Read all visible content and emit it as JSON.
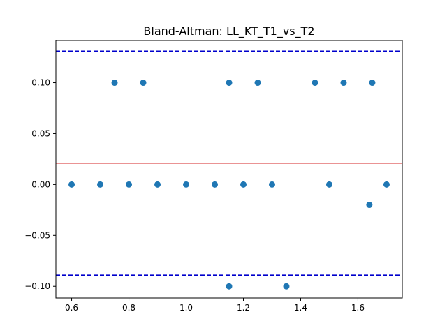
{
  "chart_data": {
    "type": "scatter",
    "title": "Bland-Altman: LL_KT_T1_vs_T2",
    "xlabel": "",
    "ylabel": "",
    "xlim": [
      0.545,
      1.755
    ],
    "ylim": [
      -0.1115,
      0.1415
    ],
    "xticks": [
      0.6,
      0.8,
      1.0,
      1.2,
      1.4,
      1.6
    ],
    "xtick_labels": [
      "0.6",
      "0.8",
      "1.0",
      "1.2",
      "1.4",
      "1.6"
    ],
    "yticks": [
      -0.1,
      -0.05,
      0.0,
      0.05,
      0.1
    ],
    "ytick_labels": [
      "−0.10",
      "−0.05",
      "0.00",
      "0.05",
      "0.10"
    ],
    "grid": false,
    "points": [
      {
        "x": 0.6,
        "y": 0.0
      },
      {
        "x": 0.7,
        "y": 0.0
      },
      {
        "x": 0.75,
        "y": 0.1
      },
      {
        "x": 0.8,
        "y": 0.0
      },
      {
        "x": 0.85,
        "y": 0.1
      },
      {
        "x": 0.9,
        "y": 0.0
      },
      {
        "x": 1.0,
        "y": 0.0
      },
      {
        "x": 1.1,
        "y": 0.0
      },
      {
        "x": 1.15,
        "y": 0.1
      },
      {
        "x": 1.15,
        "y": -0.1
      },
      {
        "x": 1.2,
        "y": 0.0
      },
      {
        "x": 1.25,
        "y": 0.1
      },
      {
        "x": 1.3,
        "y": 0.0
      },
      {
        "x": 1.35,
        "y": -0.1
      },
      {
        "x": 1.45,
        "y": 0.1
      },
      {
        "x": 1.5,
        "y": 0.0
      },
      {
        "x": 1.55,
        "y": 0.1
      },
      {
        "x": 1.64,
        "y": -0.02
      },
      {
        "x": 1.65,
        "y": 0.1
      },
      {
        "x": 1.7,
        "y": 0.0
      }
    ],
    "point_color": "#1f77b4",
    "mean_difference": 0.021,
    "mean_line_color": "#d62728",
    "upper_limit": 0.131,
    "lower_limit": -0.089,
    "limit_line_color": "#0000cc"
  }
}
